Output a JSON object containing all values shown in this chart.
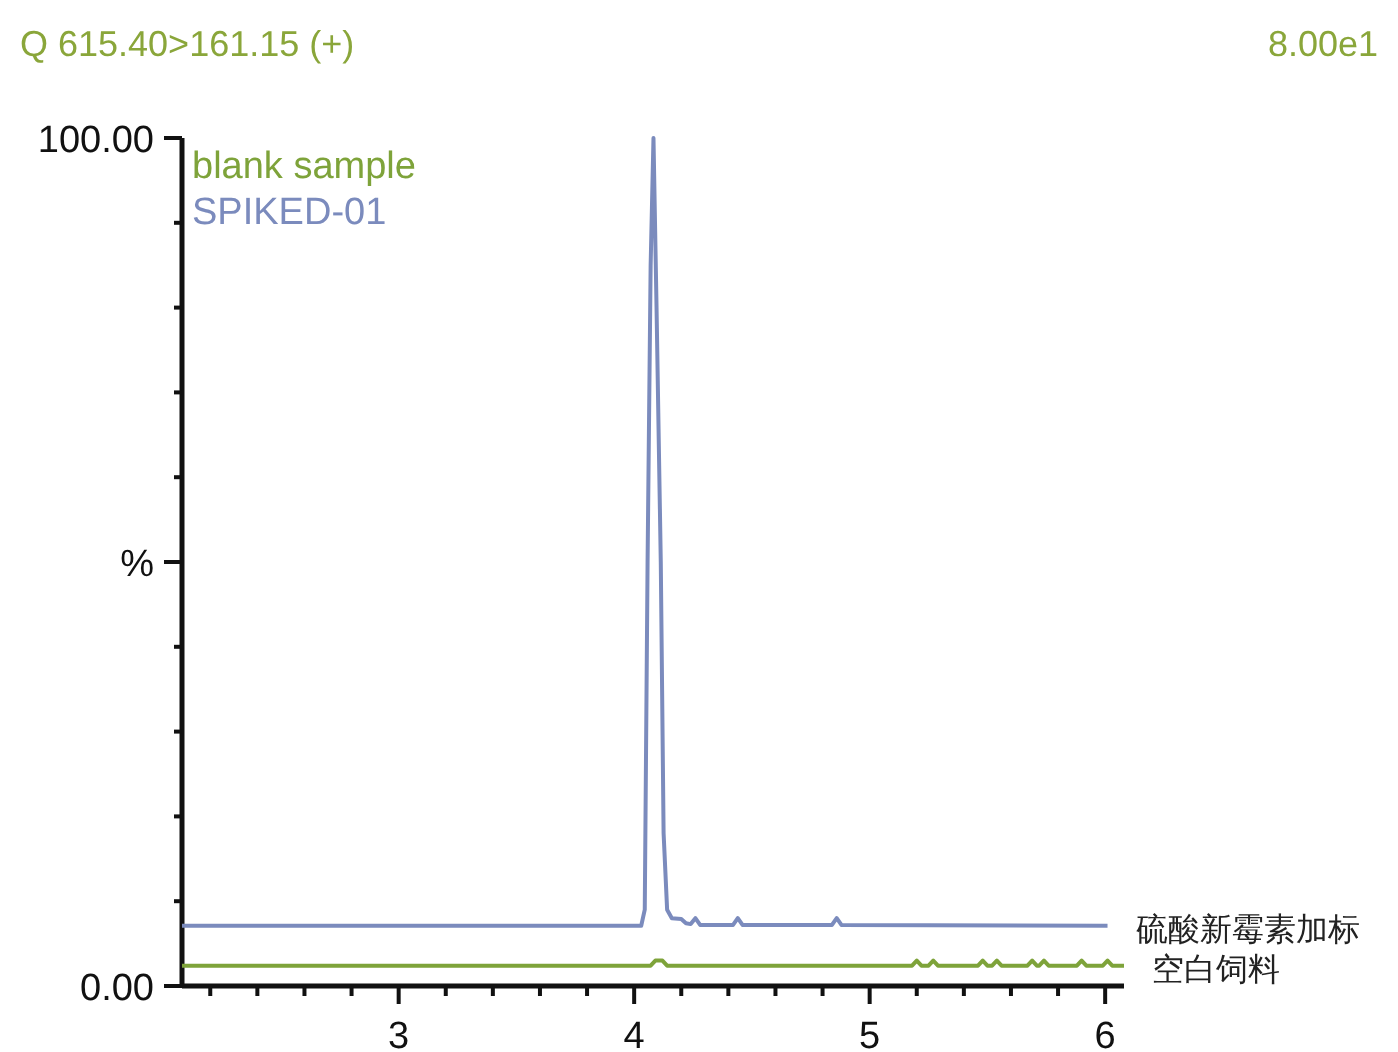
{
  "chart_data": {
    "type": "line",
    "title": "Q 615.40>161.15 (+)",
    "annotations": [
      "8.00e1",
      {
        "text": "硫酸新霉素加标",
        "x": 6.01,
        "y": 7.1
      },
      {
        "text": "空白饲料",
        "x": 6.08,
        "y": 2.4
      }
    ],
    "xlim": [
      2.08,
      6.08
    ],
    "xticks": [
      {
        "value": 2.2,
        "label": null
      },
      {
        "value": 2.4,
        "label": null
      },
      {
        "value": 2.6,
        "label": null
      },
      {
        "value": 2.8,
        "label": null
      },
      3,
      {
        "value": 3.2,
        "label": null
      },
      {
        "value": 3.4,
        "label": null
      },
      {
        "value": 3.6,
        "label": null
      },
      {
        "value": 3.8,
        "label": null
      },
      4,
      {
        "value": 4.2,
        "label": null
      },
      {
        "value": 4.4,
        "label": null
      },
      {
        "value": 4.6,
        "label": null
      },
      {
        "value": 4.8,
        "label": null
      },
      5,
      {
        "value": 5.2,
        "label": null
      },
      {
        "value": 5.4,
        "label": null
      },
      {
        "value": 5.6,
        "label": null
      },
      {
        "value": 5.8,
        "label": null
      },
      6
    ],
    "ylim": [
      0,
      100
    ],
    "yticks": [
      {
        "value": 0,
        "label": "0.00"
      },
      {
        "value": 10,
        "label": null
      },
      {
        "value": 20,
        "label": null
      },
      {
        "value": 30,
        "label": null
      },
      {
        "value": 40,
        "label": null
      },
      {
        "value": 50,
        "label": "%"
      },
      {
        "value": 60,
        "label": null
      },
      {
        "value": 70,
        "label": null
      },
      {
        "value": 80,
        "label": null
      },
      {
        "value": 90,
        "label": null
      },
      {
        "value": 100,
        "label": "100.00"
      }
    ],
    "legend": "top left",
    "series": [
      {
        "name": "blank sample",
        "color": "#7ea33a",
        "x": [
          2.08,
          4.07,
          4.09,
          4.1,
          4.12,
          4.14,
          5.18,
          5.2,
          5.22,
          5.25,
          5.27,
          5.29,
          5.46,
          5.48,
          5.5,
          5.52,
          5.54,
          5.56,
          5.67,
          5.69,
          5.71,
          5.72,
          5.74,
          5.76,
          5.88,
          5.9,
          5.92,
          5.99,
          6.01,
          6.03,
          6.08
        ],
        "values": [
          2.4,
          2.4,
          3.0,
          3.0,
          3.0,
          2.4,
          2.4,
          3.0,
          2.4,
          2.4,
          3.0,
          2.4,
          2.4,
          3.0,
          2.4,
          2.4,
          3.0,
          2.4,
          2.4,
          3.0,
          2.4,
          2.4,
          3.0,
          2.4,
          2.4,
          3.0,
          2.4,
          2.4,
          3.0,
          2.4,
          2.4
        ]
      },
      {
        "name": "SPIKED-01",
        "color": "#7b8bbd",
        "x": [
          2.08,
          4.03,
          4.045,
          4.057,
          4.07,
          4.082,
          4.095,
          4.113,
          4.125,
          4.14,
          4.16,
          4.2,
          4.22,
          4.24,
          4.26,
          4.28,
          4.42,
          4.44,
          4.46,
          4.84,
          4.86,
          4.88,
          6.01
        ],
        "values": [
          7.1,
          7.1,
          9,
          50,
          85,
          100,
          80,
          50,
          18,
          9,
          8,
          7.9,
          7.4,
          7.3,
          8.0,
          7.2,
          7.2,
          8.0,
          7.2,
          7.2,
          8.0,
          7.2,
          7.1
        ]
      }
    ]
  }
}
